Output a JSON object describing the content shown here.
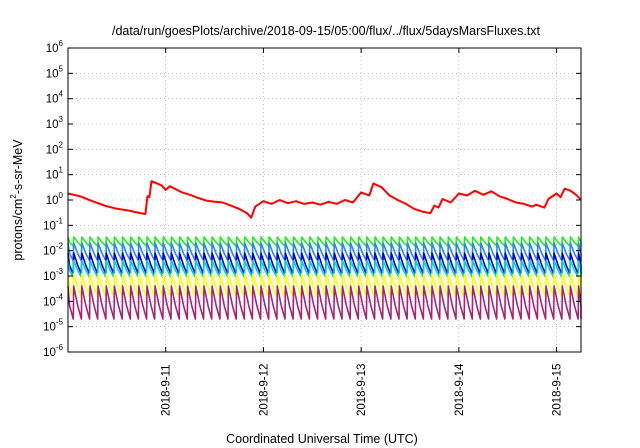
{
  "chart_data": {
    "type": "line",
    "title": "/data/run/goesPlots/archive/2018-09-15/05:00/flux/../flux/5daysMarsFluxes.txt",
    "xlabel": "Coordinated Universal Time (UTC)",
    "ylabel": "protons/cm2-s-sr-MeV",
    "ylabel_parts": {
      "before": "protons/cm",
      "sup": "2",
      "after": "-s-sr-MeV"
    },
    "y_scale": "log",
    "ylim_exponents": [
      -6,
      6
    ],
    "y_tick_exponents": [
      -6,
      -5,
      -4,
      -3,
      -2,
      -1,
      0,
      1,
      2,
      3,
      4,
      5,
      6
    ],
    "y_tick_base": "10",
    "x_range_days": [
      "2018-09-10",
      "2018-09-15 06:00"
    ],
    "x_ticks": [
      {
        "label": "2018-9-11",
        "at": "2018-09-11"
      },
      {
        "label": "2018-9-12",
        "at": "2018-09-12"
      },
      {
        "label": "2018-9-13",
        "at": "2018-09-13"
      },
      {
        "label": "2018-9-14",
        "at": "2018-09-14"
      },
      {
        "label": "2018-9-15",
        "at": "2018-09-15"
      }
    ],
    "grid": "dotted",
    "legend": "none",
    "series": [
      {
        "color": "#ff0000",
        "points": [
          [
            "2018-09-10 00:00",
            1.8
          ],
          [
            "2018-09-10 03:00",
            1.4
          ],
          [
            "2018-09-10 06:00",
            0.9
          ],
          [
            "2018-09-10 09:00",
            0.6
          ],
          [
            "2018-09-10 12:00",
            0.45
          ],
          [
            "2018-09-10 15:00",
            0.38
          ],
          [
            "2018-09-10 17:00",
            0.32
          ],
          [
            "2018-09-10 19:00",
            0.28
          ],
          [
            "2018-09-10 19:30",
            1.4
          ],
          [
            "2018-09-10 20:00",
            1.3
          ],
          [
            "2018-09-10 20:30",
            5.5
          ],
          [
            "2018-09-10 23:00",
            3.8
          ],
          [
            "2018-09-11 00:00",
            2.5
          ],
          [
            "2018-09-11 01:00",
            3.5
          ],
          [
            "2018-09-11 04:00",
            2.0
          ],
          [
            "2018-09-11 06:00",
            1.6
          ],
          [
            "2018-09-11 08:00",
            1.2
          ],
          [
            "2018-09-11 10:00",
            0.95
          ],
          [
            "2018-09-11 12:00",
            0.85
          ],
          [
            "2018-09-11 14:00",
            0.8
          ],
          [
            "2018-09-11 16:00",
            0.6
          ],
          [
            "2018-09-11 18:00",
            0.45
          ],
          [
            "2018-09-11 20:00",
            0.3
          ],
          [
            "2018-09-11 21:00",
            0.2
          ],
          [
            "2018-09-11 22:00",
            0.55
          ],
          [
            "2018-09-12 00:00",
            0.9
          ],
          [
            "2018-09-12 02:00",
            0.7
          ],
          [
            "2018-09-12 04:00",
            1.0
          ],
          [
            "2018-09-12 06:00",
            0.75
          ],
          [
            "2018-09-12 08:00",
            0.9
          ],
          [
            "2018-09-12 10:00",
            0.7
          ],
          [
            "2018-09-12 12:00",
            0.8
          ],
          [
            "2018-09-12 14:00",
            0.65
          ],
          [
            "2018-09-12 16:00",
            0.85
          ],
          [
            "2018-09-12 18:00",
            0.7
          ],
          [
            "2018-09-12 20:00",
            1.0
          ],
          [
            "2018-09-12 22:00",
            0.8
          ],
          [
            "2018-09-13 00:00",
            2.0
          ],
          [
            "2018-09-13 02:00",
            1.5
          ],
          [
            "2018-09-13 03:00",
            4.5
          ],
          [
            "2018-09-13 05:00",
            3.2
          ],
          [
            "2018-09-13 07:00",
            1.5
          ],
          [
            "2018-09-13 09:00",
            1.0
          ],
          [
            "2018-09-13 11:00",
            0.7
          ],
          [
            "2018-09-13 13:00",
            0.45
          ],
          [
            "2018-09-13 15:00",
            0.35
          ],
          [
            "2018-09-13 17:00",
            0.3
          ],
          [
            "2018-09-13 18:00",
            0.6
          ],
          [
            "2018-09-13 19:00",
            0.5
          ],
          [
            "2018-09-13 20:00",
            1.1
          ],
          [
            "2018-09-13 22:00",
            0.8
          ],
          [
            "2018-09-14 00:00",
            1.8
          ],
          [
            "2018-09-14 02:00",
            1.5
          ],
          [
            "2018-09-14 04:00",
            2.3
          ],
          [
            "2018-09-14 06:00",
            1.6
          ],
          [
            "2018-09-14 08:00",
            2.2
          ],
          [
            "2018-09-14 10:00",
            1.4
          ],
          [
            "2018-09-14 12:00",
            1.1
          ],
          [
            "2018-09-14 14:00",
            0.8
          ],
          [
            "2018-09-14 16:00",
            0.7
          ],
          [
            "2018-09-14 18:00",
            0.55
          ],
          [
            "2018-09-14 19:00",
            0.65
          ],
          [
            "2018-09-14 21:00",
            0.5
          ],
          [
            "2018-09-14 22:00",
            1.1
          ],
          [
            "2018-09-15 00:00",
            1.8
          ],
          [
            "2018-09-15 01:00",
            1.3
          ],
          [
            "2018-09-15 02:00",
            2.8
          ],
          [
            "2018-09-15 03:00",
            2.5
          ],
          [
            "2018-09-15 04:00",
            2.0
          ],
          [
            "2018-09-15 05:00",
            1.5
          ],
          [
            "2018-09-15 06:00",
            1.0
          ]
        ]
      },
      {
        "color": "#22ee22",
        "cycles_per_day": 12,
        "peak": 0.035,
        "trough": 0.015
      },
      {
        "color": "#2288ff",
        "cycles_per_day": 12,
        "peak": 0.02,
        "trough": 0.004
      },
      {
        "color": "#0000cc",
        "cycles_per_day": 12,
        "peak": 0.008,
        "trough": 0.0012
      },
      {
        "color": "#00d4d4",
        "cycles_per_day": 12,
        "peak": 0.004,
        "trough": 0.0009
      },
      {
        "color": "#ffff00",
        "cycles_per_day": 12,
        "peak": 0.0012,
        "trough": 0.00015
      },
      {
        "color": "#aa2277",
        "cycles_per_day": 12,
        "peak": 0.0004,
        "trough": 2e-05
      }
    ]
  }
}
